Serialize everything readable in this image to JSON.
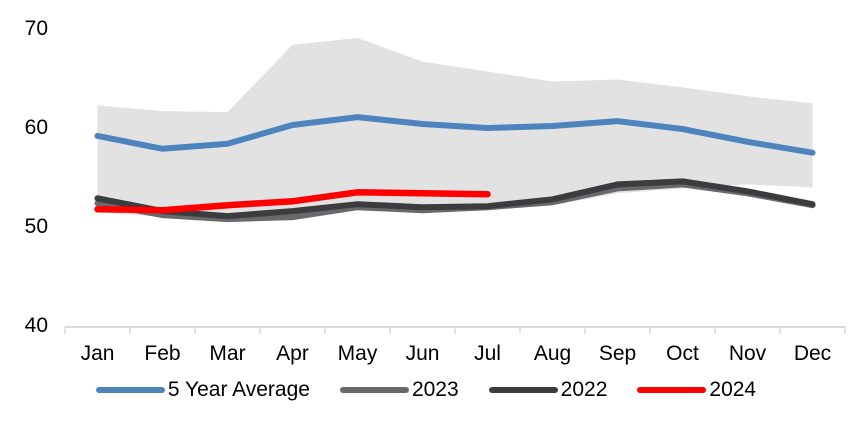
{
  "chart_data": {
    "type": "line",
    "title": "",
    "xlabel": "",
    "ylabel": "",
    "categories": [
      "Jan",
      "Feb",
      "Mar",
      "Apr",
      "May",
      "Jun",
      "Jul",
      "Aug",
      "Sep",
      "Oct",
      "Nov",
      "Dec"
    ],
    "y_ticks": [
      40,
      50,
      60,
      70
    ],
    "y_tick_labels": [
      "40",
      "50",
      "60",
      "70"
    ],
    "ylim": [
      40,
      72
    ],
    "grid": false,
    "axis_color": "#D9D9D9",
    "text_color": "#000000",
    "band": {
      "name": "5-year-range",
      "color": "#E2E2E2",
      "upper": [
        62.2,
        61.6,
        61.5,
        68.3,
        69.0,
        66.6,
        65.6,
        64.6,
        64.8,
        64.0,
        63.1,
        62.4
      ],
      "lower": [
        51.4,
        50.9,
        50.6,
        51.0,
        51.6,
        51.7,
        51.6,
        52.1,
        53.3,
        53.8,
        54.2,
        53.9
      ]
    },
    "series": [
      {
        "name": "5 Year Average",
        "color": "#4E84BD",
        "width": 6,
        "values": [
          59.1,
          57.8,
          58.3,
          60.2,
          61.0,
          60.3,
          59.9,
          60.1,
          60.6,
          59.8,
          58.5,
          57.4
        ]
      },
      {
        "name": "2023",
        "color": "#69696C",
        "width": 6,
        "values": [
          52.3,
          51.1,
          50.7,
          50.9,
          51.9,
          51.6,
          51.9,
          52.4,
          53.8,
          54.2,
          53.3,
          52.1
        ]
      },
      {
        "name": "2022",
        "color": "#3C3C3E",
        "width": 6,
        "values": [
          52.8,
          51.5,
          51.0,
          51.5,
          52.2,
          51.9,
          52.0,
          52.7,
          54.2,
          54.5,
          53.5,
          52.2
        ]
      },
      {
        "name": "2024",
        "color": "#FF0000",
        "width": 6.5,
        "values": [
          51.7,
          51.6,
          52.1,
          52.5,
          53.4,
          53.3,
          53.2,
          null,
          null,
          null,
          null,
          null
        ]
      }
    ],
    "legend": {
      "position": "bottom",
      "entries": [
        "5 Year Average",
        "2023",
        "2022",
        "2024"
      ]
    }
  }
}
